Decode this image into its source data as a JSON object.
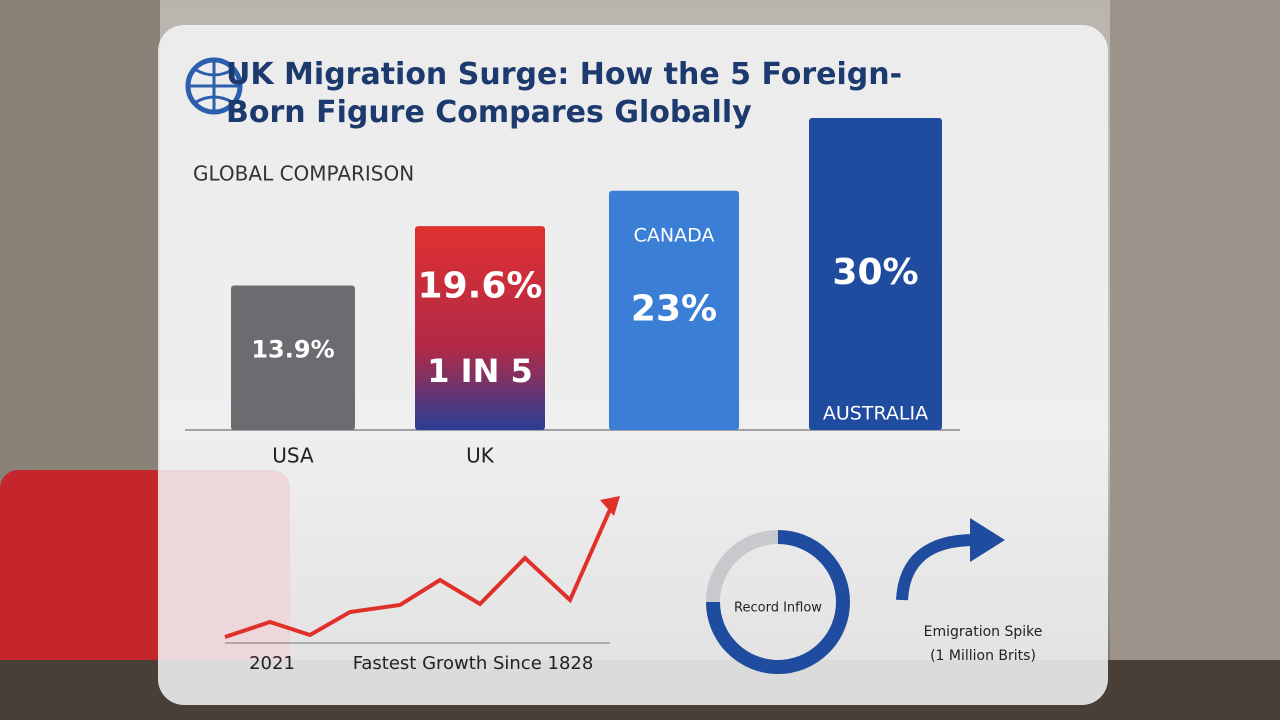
{
  "chart_data": {
    "type": "bar",
    "title": "UK Migration Surge: How the 5 Foreign-Born Figure Compares Globally",
    "subtitle": "GLOBAL COMPARISON",
    "categories": [
      "USA",
      "UK",
      "CANADA",
      "AUSTRALIA"
    ],
    "values": [
      13.9,
      19.6,
      23,
      30
    ],
    "value_labels": [
      "13.9%",
      "19.6%",
      "23%",
      "30%"
    ],
    "colors": [
      "#6a6c70",
      "#d9302f",
      "#3a7fd5",
      "#1f4c9e"
    ],
    "annotations": [
      "1 IN 5",
      "2021",
      "Fastest Growth Since 1828",
      "Record Inflow",
      "Emigration Spike",
      "(1 Million Brits)"
    ]
  }
}
